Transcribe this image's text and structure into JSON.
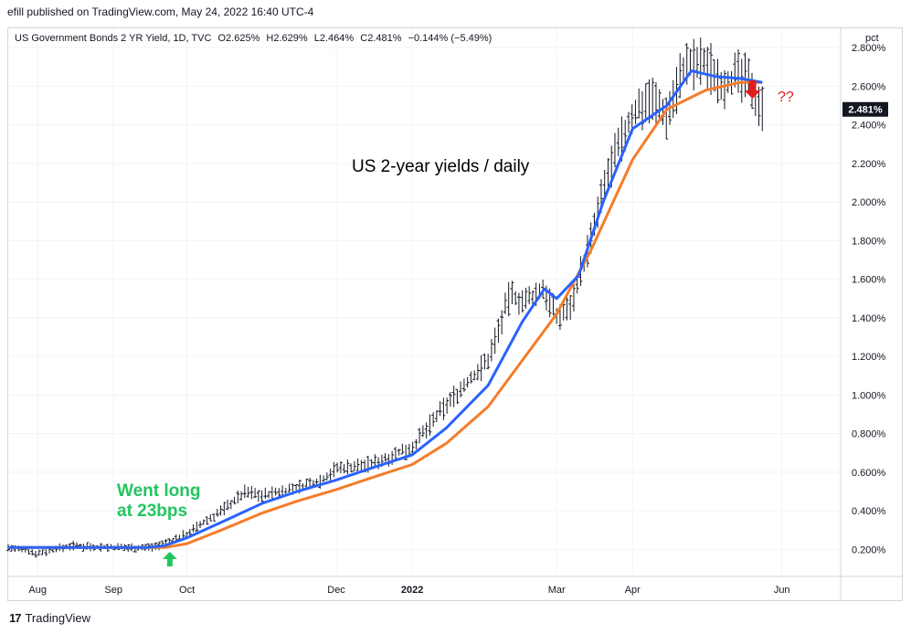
{
  "header": {
    "published": "efill published on TradingView.com, May 24, 2022 16:40 UTC-4"
  },
  "legend": {
    "symbol": "US Government Bonds 2 YR Yield, 1D, TVC",
    "open": "O2.625%",
    "high": "H2.629%",
    "low": "L2.464%",
    "close": "C2.481%",
    "change": "−0.144% (−5.49%)"
  },
  "axis": {
    "unit": "pct",
    "last_value_label": "2.481%"
  },
  "annotations": {
    "title": "US 2-year yields / daily",
    "went_long_line1": "Went long",
    "went_long_line2": "at 23bps",
    "question": "??"
  },
  "footer": {
    "brand": "TradingView",
    "logo_mark": "17"
  },
  "colors": {
    "bars": "#131722",
    "ema_fast": "#2962ff",
    "ema_slow": "#f57c28",
    "green_arrow": "#22c55e",
    "red_arrow": "#e11d1d",
    "grid": "#f0f3fa"
  },
  "chart_data": {
    "type": "line",
    "y_ticks": [
      "0.200%",
      "0.400%",
      "0.600%",
      "0.800%",
      "1.000%",
      "1.200%",
      "1.400%",
      "1.600%",
      "1.800%",
      "2.000%",
      "2.200%",
      "2.400%",
      "2.600%",
      "2.800%"
    ],
    "y_tick_values": [
      0.2,
      0.4,
      0.6,
      0.8,
      1.0,
      1.2,
      1.4,
      1.6,
      1.8,
      2.0,
      2.2,
      2.4,
      2.6,
      2.8
    ],
    "ylim": [
      0.06,
      2.9
    ],
    "x_ticks": [
      "Aug",
      "Sep",
      "Oct",
      "Dec",
      "2022",
      "Mar",
      "Apr",
      "Jun"
    ],
    "x_tick_dates": [
      "2021-08-01",
      "2021-09-01",
      "2021-10-01",
      "2021-12-01",
      "2022-01-01",
      "2022-03-01",
      "2022-04-01",
      "2022-06-01"
    ],
    "x_tick_bold": [
      false,
      false,
      false,
      false,
      true,
      false,
      false,
      false
    ],
    "xlim": [
      "2021-07-20",
      "2022-06-25"
    ],
    "series": [
      {
        "role": "price",
        "x": [
          "2021-07-20",
          "2021-08-01",
          "2021-08-15",
          "2021-09-01",
          "2021-09-15",
          "2021-09-22",
          "2021-10-01",
          "2021-10-15",
          "2021-10-25",
          "2021-11-01",
          "2021-11-15",
          "2021-11-25",
          "2021-12-01",
          "2021-12-15",
          "2022-01-01",
          "2022-01-15",
          "2022-02-01",
          "2022-02-10",
          "2022-02-16",
          "2022-02-24",
          "2022-03-01",
          "2022-03-07",
          "2022-03-15",
          "2022-03-22",
          "2022-04-01",
          "2022-04-08",
          "2022-04-15",
          "2022-04-22",
          "2022-05-01",
          "2022-05-08",
          "2022-05-15",
          "2022-05-20",
          "2022-05-24"
        ],
        "values": [
          0.21,
          0.18,
          0.22,
          0.21,
          0.21,
          0.23,
          0.28,
          0.4,
          0.5,
          0.48,
          0.52,
          0.56,
          0.62,
          0.64,
          0.73,
          0.95,
          1.18,
          1.52,
          1.48,
          1.55,
          1.4,
          1.48,
          1.8,
          2.15,
          2.45,
          2.55,
          2.45,
          2.7,
          2.72,
          2.62,
          2.65,
          2.6,
          2.48
        ]
      },
      {
        "role": "ema_fast",
        "x": [
          "2021-07-20",
          "2021-08-15",
          "2021-09-15",
          "2021-09-22",
          "2021-10-01",
          "2021-10-15",
          "2021-11-01",
          "2021-11-15",
          "2021-12-01",
          "2021-12-15",
          "2022-01-01",
          "2022-01-15",
          "2022-02-01",
          "2022-02-15",
          "2022-02-24",
          "2022-03-01",
          "2022-03-10",
          "2022-03-20",
          "2022-04-01",
          "2022-04-15",
          "2022-04-25",
          "2022-05-05",
          "2022-05-15",
          "2022-05-24"
        ],
        "values": [
          0.21,
          0.21,
          0.21,
          0.22,
          0.26,
          0.34,
          0.44,
          0.5,
          0.56,
          0.62,
          0.69,
          0.83,
          1.05,
          1.38,
          1.55,
          1.5,
          1.62,
          2.0,
          2.38,
          2.5,
          2.68,
          2.65,
          2.64,
          2.62
        ]
      },
      {
        "role": "ema_slow",
        "x": [
          "2021-07-20",
          "2021-08-15",
          "2021-09-15",
          "2021-09-22",
          "2021-10-01",
          "2021-10-15",
          "2021-11-01",
          "2021-11-15",
          "2021-12-01",
          "2021-12-15",
          "2022-01-01",
          "2022-01-15",
          "2022-02-01",
          "2022-02-15",
          "2022-03-01",
          "2022-03-15",
          "2022-04-01",
          "2022-04-15",
          "2022-05-01",
          "2022-05-15",
          "2022-05-24"
        ],
        "values": [
          0.21,
          0.21,
          0.21,
          0.21,
          0.23,
          0.3,
          0.39,
          0.45,
          0.51,
          0.57,
          0.64,
          0.75,
          0.94,
          1.18,
          1.42,
          1.75,
          2.22,
          2.48,
          2.58,
          2.62,
          2.62
        ]
      }
    ]
  }
}
